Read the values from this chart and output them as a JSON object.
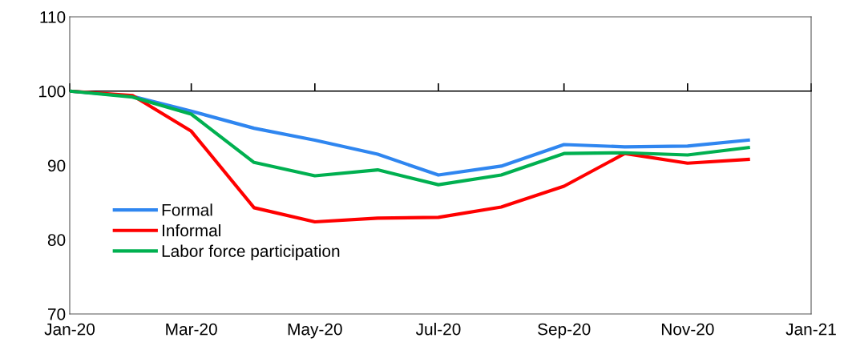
{
  "chart_data": {
    "type": "line",
    "x": [
      "2020-01",
      "2020-02",
      "2020-03",
      "2020-04",
      "2020-05",
      "2020-06",
      "2020-07",
      "2020-08",
      "2020-09",
      "2020-10",
      "2020-11",
      "2020-12"
    ],
    "series": [
      {
        "name": "Formal",
        "color": "#2f86f0",
        "values": [
          100,
          99.3,
          97.3,
          95.0,
          93.4,
          91.5,
          88.7,
          89.9,
          92.8,
          92.5,
          92.6,
          93.4
        ]
      },
      {
        "name": "Informal",
        "color": "#ff0000",
        "values": [
          100,
          99.4,
          94.6,
          84.3,
          82.4,
          82.9,
          83.0,
          84.4,
          87.2,
          91.6,
          90.3,
          90.8
        ]
      },
      {
        "name": "Labor force participation",
        "color": "#00b050",
        "values": [
          100,
          99.2,
          96.9,
          90.4,
          88.6,
          89.4,
          87.4,
          88.7,
          91.6,
          91.7,
          91.4,
          92.4
        ]
      }
    ],
    "xlim": [
      "2020-01",
      "2021-01"
    ],
    "xticks": [
      {
        "value": "2020-01",
        "label": "Jan-20"
      },
      {
        "value": "2020-03",
        "label": "Mar-20"
      },
      {
        "value": "2020-05",
        "label": "May-20"
      },
      {
        "value": "2020-07",
        "label": "Jul-20"
      },
      {
        "value": "2020-09",
        "label": "Sep-20"
      },
      {
        "value": "2020-11",
        "label": "Nov-20"
      },
      {
        "value": "2021-01",
        "label": "Jan-21"
      }
    ],
    "ylim": [
      70,
      110
    ],
    "yticks": [
      70,
      80,
      90,
      100,
      110
    ],
    "ref_lines": [
      {
        "axis": "y",
        "value": 100,
        "color": "#000000"
      }
    ],
    "grid": false,
    "legend": "bottom left",
    "marker": "none",
    "line_style": "solid"
  }
}
